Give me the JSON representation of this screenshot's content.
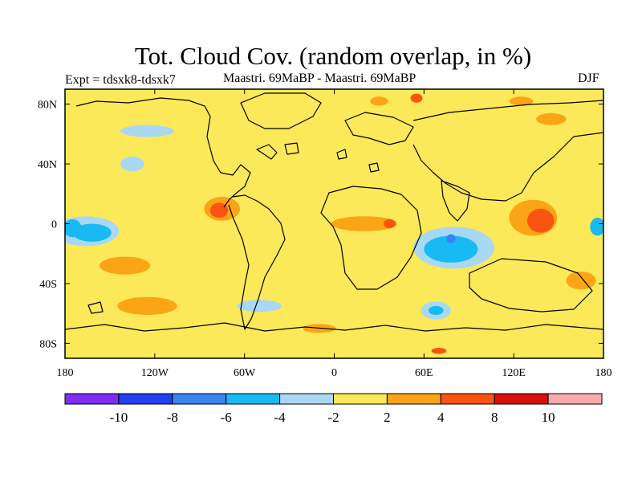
{
  "header": {
    "title": "Tot. Cloud Cov. (random overlap, in %)",
    "expt": "Expt = tdsxk8-tdsxk7",
    "subtitle": "Maastri.  69MaBP - Maastri.  69MaBP",
    "season": "DJF"
  },
  "axes": {
    "x_ticks": [
      {
        "value": -180,
        "label": "180"
      },
      {
        "value": -120,
        "label": "120W"
      },
      {
        "value": -60,
        "label": "60W"
      },
      {
        "value": 0,
        "label": "0"
      },
      {
        "value": 60,
        "label": "60E"
      },
      {
        "value": 120,
        "label": "120E"
      },
      {
        "value": 180,
        "label": "180"
      }
    ],
    "y_ticks": [
      {
        "value": 80,
        "label": "80N"
      },
      {
        "value": 40,
        "label": "40N"
      },
      {
        "value": 0,
        "label": "0"
      },
      {
        "value": -40,
        "label": "40S"
      },
      {
        "value": -80,
        "label": "80S"
      }
    ],
    "lon_range": [
      -180,
      180
    ],
    "lat_range": [
      -90,
      90
    ]
  },
  "colorbar": {
    "colors": [
      "#7d2ef0",
      "#2440f0",
      "#3a84f0",
      "#18baf4",
      "#a8d8f4",
      "#fbe95a",
      "#fba416",
      "#fb5310",
      "#d80f0f",
      "#f8aaaa"
    ],
    "labels": [
      "-10",
      "-8",
      "-6",
      "-4",
      "-2",
      "2",
      "4",
      "8",
      "10"
    ]
  },
  "chart_data": {
    "type": "heatmap",
    "variable": "Tot. Cloud Cov. (random overlap, in %)",
    "levels": [
      -10,
      -8,
      -6,
      -4,
      -2,
      2,
      4,
      8,
      10
    ],
    "background_class": "-2 to 2",
    "anomalies": [
      {
        "lon": -166,
        "lat": -5,
        "rx": 22,
        "ry": 10,
        "class": -4
      },
      {
        "lon": -162,
        "lat": -6,
        "rx": 13,
        "ry": 6,
        "class": -6
      },
      {
        "lon": -175,
        "lat": -3,
        "rx": 6,
        "ry": 6,
        "class": -6
      },
      {
        "lon": 80,
        "lat": -16,
        "rx": 27,
        "ry": 14,
        "class": -4
      },
      {
        "lon": 78,
        "lat": -17,
        "rx": 18,
        "ry": 9,
        "class": -6
      },
      {
        "lon": 78,
        "lat": -10,
        "rx": 3,
        "ry": 3,
        "class": -8
      },
      {
        "lon": 176,
        "lat": -2,
        "rx": 5,
        "ry": 6,
        "class": -6
      },
      {
        "lon": 68,
        "lat": -58,
        "rx": 10,
        "ry": 6,
        "class": -4
      },
      {
        "lon": 68,
        "lat": -58,
        "rx": 5,
        "ry": 3,
        "class": -6
      },
      {
        "lon": 133,
        "lat": 4,
        "rx": 16,
        "ry": 12,
        "class": 4
      },
      {
        "lon": 138,
        "lat": 2,
        "rx": 9,
        "ry": 8,
        "class": 8
      },
      {
        "lon": -75,
        "lat": 10,
        "rx": 12,
        "ry": 8,
        "class": 4
      },
      {
        "lon": -77,
        "lat": 9,
        "rx": 6,
        "ry": 5,
        "class": 8
      },
      {
        "lon": 20,
        "lat": 0,
        "rx": 22,
        "ry": 5,
        "class": 4
      },
      {
        "lon": 37,
        "lat": 0,
        "rx": 4,
        "ry": 3,
        "class": 8
      },
      {
        "lon": -140,
        "lat": -28,
        "rx": 17,
        "ry": 6,
        "class": 4
      },
      {
        "lon": -125,
        "lat": -55,
        "rx": 20,
        "ry": 6,
        "class": 4
      },
      {
        "lon": 125,
        "lat": 82,
        "rx": 8,
        "ry": 3,
        "class": 4
      },
      {
        "lon": 145,
        "lat": 70,
        "rx": 10,
        "ry": 4,
        "class": 4
      },
      {
        "lon": 70,
        "lat": -85,
        "rx": 5,
        "ry": 2,
        "class": 8
      },
      {
        "lon": -10,
        "lat": -70,
        "rx": 11,
        "ry": 3,
        "class": 4
      },
      {
        "lon": -135,
        "lat": 40,
        "rx": 8,
        "ry": 5,
        "class": -4
      },
      {
        "lon": -125,
        "lat": 62,
        "rx": 18,
        "ry": 4,
        "class": -4
      },
      {
        "lon": -50,
        "lat": -55,
        "rx": 15,
        "ry": 4,
        "class": -4
      },
      {
        "lon": 165,
        "lat": -38,
        "rx": 10,
        "ry": 6,
        "class": 4
      },
      {
        "lon": 30,
        "lat": 82,
        "rx": 6,
        "ry": 3,
        "class": 4
      },
      {
        "lon": 55,
        "lat": 84,
        "rx": 4,
        "ry": 3,
        "class": 8
      }
    ]
  }
}
